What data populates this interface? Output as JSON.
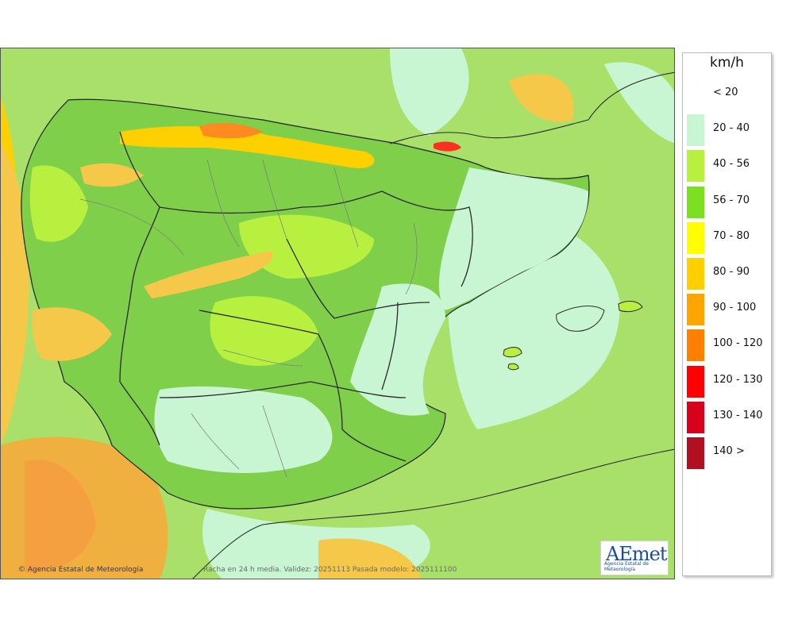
{
  "legend": {
    "unit": "km/h",
    "items": [
      {
        "label": "< 20",
        "color": ""
      },
      {
        "label": "20 - 40",
        "color": "#c8f5d2"
      },
      {
        "label": "40 - 56",
        "color": "#b8f040"
      },
      {
        "label": "56 - 70",
        "color": "#7be020"
      },
      {
        "label": "70 - 80",
        "color": "#ffff00"
      },
      {
        "label": "80 - 90",
        "color": "#ffd000"
      },
      {
        "label": "90 - 100",
        "color": "#ffa500"
      },
      {
        "label": "100 - 120",
        "color": "#ff7f00"
      },
      {
        "label": "120 - 130",
        "color": "#ff0000"
      },
      {
        "label": "130 - 140",
        "color": "#d8001a"
      },
      {
        "label": "140 >",
        "color": "#b01020"
      }
    ]
  },
  "footer": {
    "copyright": "© Agencia Estatal de Meteorología",
    "note": "Racha en 24 h media. Validez: 20251113 Pasada modelo: 2025111100"
  },
  "logo": {
    "text": "AEmet",
    "subtitle": "Agencia Estatal de Meteorología"
  },
  "colors": {
    "sea_base": "#a8e06a",
    "calm": "#c8f5d2",
    "strong": "#ffd000",
    "border": "#222222"
  }
}
